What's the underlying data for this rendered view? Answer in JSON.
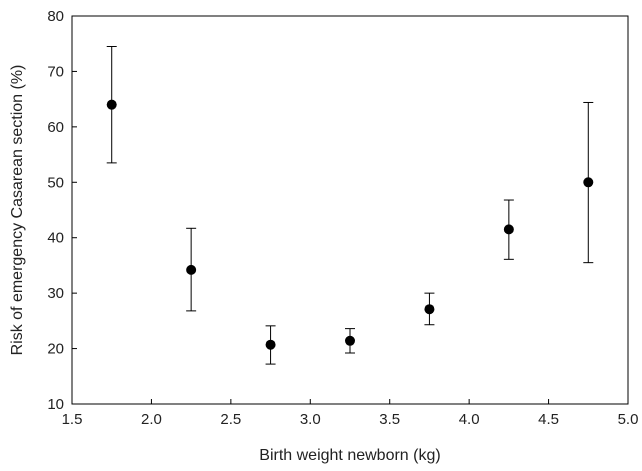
{
  "chart_data": {
    "type": "scatter",
    "title": "",
    "xlabel": "Birth weight newborn (kg)",
    "ylabel": "Risk of emergency Casarean section (%)",
    "xlim": [
      1.5,
      5.0
    ],
    "ylim": [
      10,
      80
    ],
    "x_ticks": [
      "1.5",
      "2.0",
      "2.5",
      "3.0",
      "3.5",
      "4.0",
      "4.5",
      "5.0"
    ],
    "y_ticks": [
      "10",
      "20",
      "30",
      "40",
      "50",
      "60",
      "70",
      "80"
    ],
    "grid": false,
    "legend": "none",
    "marker_color": "#000000",
    "points": [
      {
        "x": 1.75,
        "y": 64.0,
        "lower": 53.5,
        "upper": 74.5
      },
      {
        "x": 2.25,
        "y": 34.2,
        "lower": 26.8,
        "upper": 41.7
      },
      {
        "x": 2.75,
        "y": 20.7,
        "lower": 17.2,
        "upper": 24.1
      },
      {
        "x": 3.25,
        "y": 21.4,
        "lower": 19.2,
        "upper": 23.6
      },
      {
        "x": 3.75,
        "y": 27.1,
        "lower": 24.3,
        "upper": 30.0
      },
      {
        "x": 4.25,
        "y": 41.5,
        "lower": 36.1,
        "upper": 46.8
      },
      {
        "x": 4.75,
        "y": 50.0,
        "lower": 35.5,
        "upper": 64.4
      }
    ]
  }
}
